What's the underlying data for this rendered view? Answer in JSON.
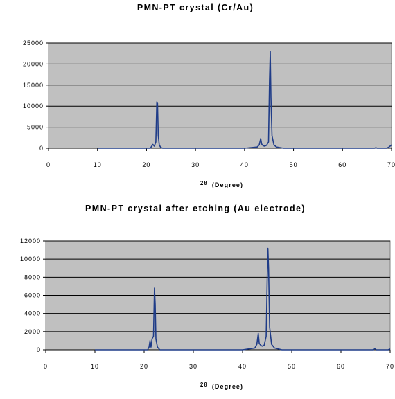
{
  "chart_data": [
    {
      "type": "line",
      "title": "PMN-PT crystal (Cr/Au)",
      "xlabel_symbol": "2θ",
      "xlabel": "(Degree)",
      "ylabel": "",
      "xlim": [
        0,
        70
      ],
      "ylim": [
        0,
        25000
      ],
      "x_ticks": [
        "0",
        "10",
        "20",
        "30",
        "40",
        "50",
        "60",
        "70"
      ],
      "y_ticks": [
        "0",
        "5000",
        "10000",
        "15000",
        "20000",
        "25000"
      ],
      "grid": "horizontal",
      "plot_background": "#c0c0c0",
      "line_color": "#1f3c88",
      "series": [
        {
          "x": [
            10,
            20.8,
            21.0,
            21.3,
            21.6,
            21.9,
            22.1,
            22.25,
            22.4,
            22.6,
            22.9,
            23.3,
            40,
            42.6,
            43.0,
            43.3,
            43.5,
            43.8,
            44.1,
            44.5,
            44.9,
            45.1,
            45.25,
            45.4,
            45.6,
            46.0,
            46.5,
            47.5,
            48,
            66.5,
            66.8,
            67.1,
            69,
            69.5,
            69.8,
            70
          ],
          "y": [
            0,
            0,
            400,
            900,
            500,
            1500,
            11000,
            10800,
            3000,
            800,
            200,
            0,
            0,
            300,
            800,
            2300,
            1000,
            600,
            500,
            700,
            1500,
            16000,
            23000,
            12000,
            3000,
            800,
            300,
            100,
            0,
            0,
            150,
            0,
            0,
            300,
            600,
            800
          ]
        }
      ]
    },
    {
      "type": "line",
      "title": "PMN-PT crystal after etching (Au electrode)",
      "xlabel_symbol": "2θ",
      "xlabel": "(Degree)",
      "ylabel": "",
      "xlim": [
        0,
        70
      ],
      "ylim": [
        0,
        12000
      ],
      "x_ticks": [
        "0",
        "10",
        "20",
        "30",
        "40",
        "50",
        "60",
        "70"
      ],
      "y_ticks": [
        "0",
        "2000",
        "4000",
        "6000",
        "8000",
        "10000",
        "12000"
      ],
      "grid": "horizontal",
      "plot_background": "#c0c0c0",
      "line_color": "#1f3c88",
      "series": [
        {
          "x": [
            10,
            20.7,
            21.0,
            21.2,
            21.4,
            21.6,
            21.9,
            22.1,
            22.25,
            22.4,
            22.7,
            23.2,
            40,
            42.5,
            42.9,
            43.2,
            43.4,
            43.7,
            44.0,
            44.4,
            44.8,
            45.0,
            45.15,
            45.3,
            45.5,
            45.9,
            46.5,
            48,
            66.5,
            66.8,
            67.2,
            69.6,
            70
          ],
          "y": [
            0,
            0,
            300,
            1000,
            300,
            1200,
            1500,
            6800,
            5000,
            1200,
            300,
            0,
            0,
            200,
            600,
            1800,
            700,
            500,
            400,
            500,
            1500,
            7500,
            11200,
            9000,
            2500,
            600,
            200,
            0,
            0,
            150,
            0,
            0,
            100
          ]
        }
      ]
    }
  ]
}
